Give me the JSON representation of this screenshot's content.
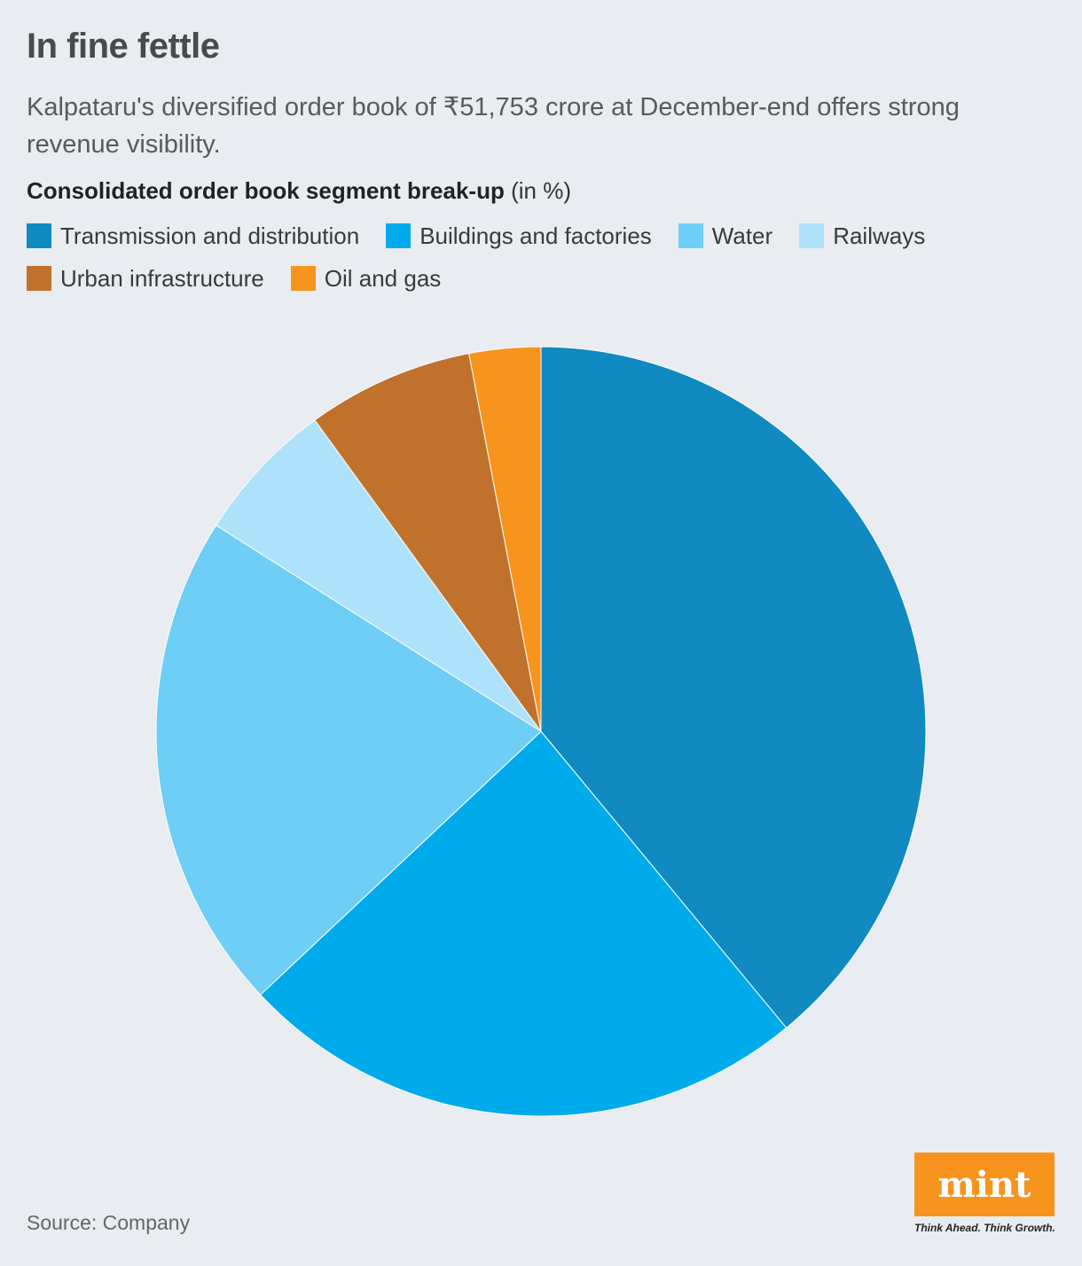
{
  "header": {
    "title": "In fine fettle",
    "subtitle": "Kalpataru's diversified order book of ₹51,753 crore at December-end offers strong revenue visibility.",
    "chart_heading_bold": "Consolidated order book segment break-up",
    "chart_heading_unit": "(in %)"
  },
  "footer": {
    "source": "Source: Company",
    "logo_text": "mint",
    "tagline": "Think Ahead. Think Growth."
  },
  "colors": {
    "background": "#e9ecf0",
    "logo": "#f7941d"
  },
  "chart_data": {
    "type": "pie",
    "title": "Consolidated order book segment break-up",
    "unit": "%",
    "legend_position": "top",
    "start_angle": "12 o'clock, clockwise",
    "slices": [
      {
        "label": "Transmission and distribution",
        "value": 39,
        "color": "#1189c1"
      },
      {
        "label": "Buildings and factories",
        "value": 24,
        "color": "#00abeb"
      },
      {
        "label": "Water",
        "value": 21,
        "color": "#6ecef5"
      },
      {
        "label": "Railways",
        "value": 6,
        "color": "#aee2fb"
      },
      {
        "label": "Urban infrastructure",
        "value": 7,
        "color": "#c0722c"
      },
      {
        "label": "Oil and gas",
        "value": 3,
        "color": "#f7941d"
      }
    ]
  }
}
